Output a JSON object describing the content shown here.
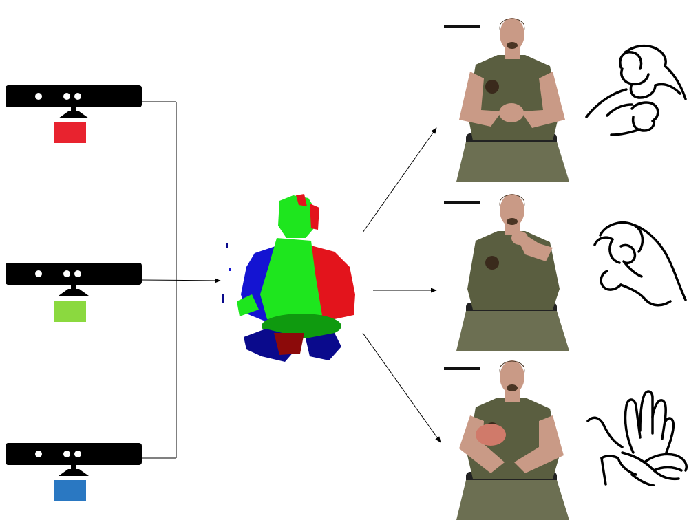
{
  "sensors": [
    {
      "id": "sensor-1",
      "color_name": "red",
      "color": "#e8232f"
    },
    {
      "id": "sensor-2",
      "color_name": "green",
      "color": "#8bd93f"
    },
    {
      "id": "sensor-3",
      "color_name": "blue",
      "color": "#2a78c2"
    }
  ],
  "pointcloud": {
    "colors": {
      "red": "#e3141c",
      "green": "#1ee61e",
      "blue": "#1414d2",
      "dark_red": "#8c0a0a",
      "dark_green": "#0f9a0f",
      "dark_blue": "#0a0a8c"
    }
  },
  "views": [
    {
      "id": "view-1",
      "hand_icon": "fist-on-hand-sign-icon"
    },
    {
      "id": "view-2",
      "hand_icon": "o-handshape-sign-icon"
    },
    {
      "id": "view-3",
      "hand_icon": "flat-hands-sign-icon"
    }
  ],
  "photo_colors": {
    "shirt": "#5a5e40",
    "skin": "#c99a86",
    "hair": "#4a3524",
    "pants": "#6c6f52",
    "chair": "#222222"
  }
}
